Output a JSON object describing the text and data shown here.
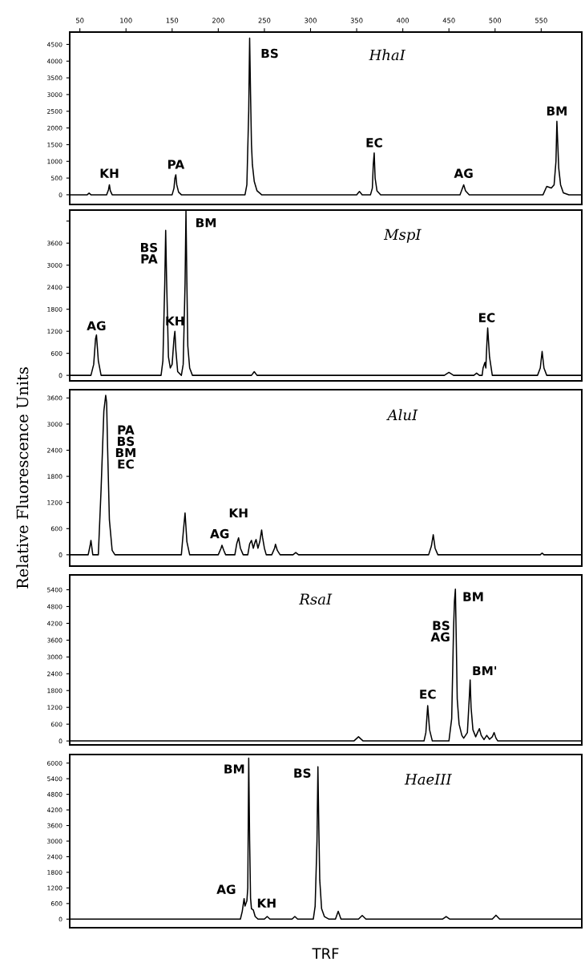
{
  "chart_data": [
    {
      "type": "line",
      "title": "HhaI",
      "xlim": [
        39,
        594
      ],
      "xticks": [
        50,
        100,
        150,
        200,
        250,
        300,
        350,
        400,
        450,
        500,
        550
      ],
      "ylim": [
        -290,
        4870
      ],
      "yticks": [
        0,
        500,
        1000,
        1500,
        2000,
        2500,
        3000,
        3500,
        4000,
        4500
      ],
      "series": [
        {
          "color": "#000000",
          "x": [
            39,
            58,
            60,
            62,
            79,
            81,
            82,
            83,
            85,
            150,
            152,
            153,
            154,
            155,
            157,
            160,
            229,
            231,
            233,
            234,
            235,
            236,
            237,
            239,
            242,
            247,
            350,
            353,
            356,
            365,
            367,
            368,
            369,
            370,
            372,
            376,
            462,
            464,
            466,
            468,
            472,
            552,
            556,
            561,
            564,
            566,
            567,
            568,
            569,
            571,
            574,
            580,
            594
          ],
          "values": [
            0,
            0,
            50,
            0,
            0,
            150,
            300,
            120,
            0,
            0,
            200,
            500,
            600,
            300,
            80,
            0,
            0,
            300,
            2500,
            4690,
            3000,
            1500,
            900,
            400,
            120,
            0,
            0,
            100,
            0,
            0,
            200,
            900,
            1250,
            500,
            120,
            0,
            0,
            150,
            300,
            120,
            0,
            0,
            250,
            200,
            300,
            1000,
            2200,
            1500,
            800,
            300,
            60,
            0,
            0
          ]
        }
      ],
      "annotations": [
        {
          "text": "KH",
          "x": 82,
          "y": 300
        },
        {
          "text": "PA",
          "x": 154,
          "y": 600
        },
        {
          "text": "BS",
          "x": 234,
          "y": 4690
        },
        {
          "text": "EC",
          "x": 369,
          "y": 1250
        },
        {
          "text": "AG",
          "x": 466,
          "y": 300
        },
        {
          "text": "BM",
          "x": 567,
          "y": 2200
        }
      ]
    },
    {
      "type": "line",
      "title": "MspI",
      "tick_labels": "y",
      "xlim": [
        39,
        594
      ],
      "ylim": [
        -150,
        4500
      ],
      "yticks": [
        0,
        600,
        1200,
        1800,
        2400,
        3000,
        3600,
        {
          "value": 4200,
          "label": null
        }
      ],
      "series": [
        {
          "color": "#000000",
          "x": [
            39,
            62,
            65,
            67,
            68,
            70,
            73,
            138,
            140,
            142,
            143,
            144,
            146,
            148,
            150,
            152,
            153,
            154,
            156,
            160,
            162,
            164,
            165,
            166,
            167,
            169,
            172,
            236,
            239,
            242,
            445,
            450,
            455,
            477,
            480,
            483,
            486,
            487,
            489,
            490,
            491,
            492,
            494,
            497,
            546,
            549,
            551,
            553,
            556,
            594
          ],
          "values": [
            0,
            0,
            300,
            1000,
            1100,
            400,
            0,
            0,
            400,
            2500,
            3950,
            2600,
            500,
            200,
            300,
            1000,
            1200,
            700,
            100,
            0,
            300,
            2500,
            4480,
            2500,
            800,
            200,
            0,
            0,
            100,
            0,
            0,
            80,
            0,
            0,
            60,
            0,
            0,
            200,
            350,
            200,
            800,
            1290,
            500,
            0,
            0,
            200,
            650,
            200,
            0,
            0
          ]
        }
      ],
      "annotations": [
        {
          "text": "AG",
          "x": 68,
          "y": 1100
        },
        {
          "text": "BS\nPA",
          "x": 143,
          "y": 3950
        },
        {
          "text": "KH",
          "x": 153,
          "y": 1200
        },
        {
          "text": "BM",
          "x": 165,
          "y": 4480
        },
        {
          "text": "EC",
          "x": 491,
          "y": 1290
        }
      ]
    },
    {
      "type": "line",
      "title": "AluI",
      "ylabel": "Relative Fluorescence Units",
      "tick_labels": "y",
      "xlim": [
        39,
        594
      ],
      "ylim": [
        -260,
        3790
      ],
      "yticks": [
        0,
        600,
        1200,
        1800,
        2400,
        3000,
        3600
      ],
      "series": [
        {
          "color": "#000000",
          "x": [
            39,
            59,
            61,
            62,
            64,
            70,
            73,
            76,
            78,
            79,
            80,
            82,
            85,
            88,
            160,
            162,
            164,
            166,
            169,
            200,
            203,
            204,
            206,
            208,
            218,
            220,
            222,
            224,
            227,
            232,
            234,
            236,
            238,
            240,
            241,
            243,
            245,
            247,
            248,
            250,
            252,
            258,
            261,
            262,
            264,
            267,
            281,
            284,
            287,
            428,
            431,
            433,
            435,
            438,
            549,
            551,
            553,
            594
          ],
          "values": [
            0,
            0,
            200,
            330,
            0,
            0,
            1500,
            3300,
            3660,
            3500,
            2500,
            800,
            100,
            0,
            0,
            500,
            960,
            300,
            0,
            0,
            150,
            220,
            100,
            0,
            0,
            250,
            390,
            150,
            0,
            0,
            250,
            330,
            150,
            300,
            350,
            150,
            300,
            570,
            400,
            150,
            0,
            0,
            150,
            240,
            100,
            0,
            0,
            50,
            0,
            0,
            200,
            460,
            150,
            0,
            0,
            40,
            0,
            0
          ]
        }
      ],
      "annotations": [
        {
          "text": "PA\nBS\nBM\nEC",
          "x": 78,
          "y": 3660
        },
        {
          "text": "AG",
          "x": 204,
          "y": 220
        },
        {
          "text": "KH",
          "x": 222,
          "y": 390
        }
      ]
    },
    {
      "type": "line",
      "title": "RsaI",
      "tick_labels": "y",
      "xlim": [
        39,
        594
      ],
      "ylim": [
        -140,
        5930
      ],
      "yticks": [
        0,
        600,
        1200,
        1800,
        2400,
        3000,
        3600,
        4200,
        4800,
        5400
      ],
      "series": [
        {
          "color": "#000000",
          "x": [
            39,
            347,
            352,
            357,
            423,
            425,
            427,
            429,
            432,
            450,
            453,
            455,
            456,
            457,
            458,
            459,
            461,
            464,
            466,
            470,
            472,
            473,
            474,
            476,
            479,
            481,
            483,
            485,
            488,
            491,
            494,
            497,
            499,
            501,
            503,
            507,
            594
          ],
          "values": [
            0,
            0,
            150,
            0,
            0,
            300,
            1260,
            400,
            0,
            0,
            800,
            4000,
            5000,
            5420,
            3500,
            1500,
            600,
            200,
            100,
            300,
            1500,
            2180,
            1200,
            400,
            150,
            300,
            440,
            200,
            50,
            200,
            60,
            150,
            300,
            100,
            0,
            0,
            0
          ]
        }
      ],
      "annotations": [
        {
          "text": "EC",
          "x": 427,
          "y": 1260
        },
        {
          "text": "BS\nAG",
          "x": 455,
          "y": 4000
        },
        {
          "text": "BM",
          "x": 457,
          "y": 5420
        },
        {
          "text": "BM'",
          "x": 473,
          "y": 2180
        }
      ]
    },
    {
      "type": "line",
      "title": "HaeIII",
      "xlabel": "TRF",
      "tick_labels": "y",
      "xlim": [
        39,
        594
      ],
      "ylim": [
        -330,
        6330
      ],
      "yticks": [
        0,
        600,
        1200,
        1800,
        2400,
        3000,
        3600,
        4200,
        4800,
        5400,
        6000
      ],
      "series": [
        {
          "color": "#000000",
          "x": [
            39,
            224,
            226,
            228,
            229,
            231,
            232,
            233,
            234,
            235,
            236,
            238,
            240,
            243,
            250,
            253,
            256,
            280,
            283,
            286,
            303,
            305,
            307,
            308,
            309,
            310,
            312,
            315,
            320,
            327,
            330,
            333,
            352,
            356,
            360,
            443,
            447,
            451,
            497,
            501,
            505,
            594
          ],
          "values": [
            0,
            0,
            300,
            790,
            500,
            700,
            1200,
            6190,
            3000,
            800,
            400,
            350,
            100,
            0,
            0,
            100,
            0,
            0,
            100,
            0,
            0,
            500,
            3000,
            5860,
            3500,
            1500,
            400,
            100,
            0,
            0,
            300,
            0,
            0,
            140,
            0,
            0,
            100,
            0,
            0,
            150,
            0,
            0
          ]
        }
      ],
      "annotations": [
        {
          "text": "AG",
          "x": 228,
          "y": 790
        },
        {
          "text": "BM",
          "x": 233,
          "y": 6190
        },
        {
          "text": "KH",
          "x": 238,
          "y": 350
        },
        {
          "text": "BS",
          "x": 308,
          "y": 5860
        }
      ]
    }
  ]
}
